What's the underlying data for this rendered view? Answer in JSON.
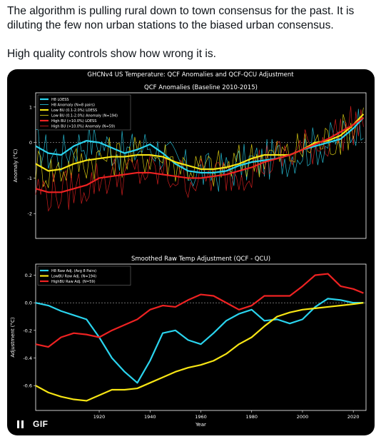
{
  "post": {
    "line1": "The algorithm is pulling rural down to town consensus for the past. It is diluting the few non urban stations to the biased urban consensus.",
    "line2": "High quality controls show how wrong it is."
  },
  "media": {
    "suptitle": "GHCNv4 US Temperature: QCF Anomalies and QCF-QCU Adjustment",
    "gif_label": "GIF",
    "pause_icon": "pause-icon"
  },
  "colors": {
    "cyan": "#2ad4ee",
    "yellow": "#f7e514",
    "red": "#ee2222",
    "white_series": "#ffffff"
  },
  "chart_data": [
    {
      "type": "line",
      "title": "QCF Anomalies (Baseline 2010-2015)",
      "xlabel": "",
      "ylabel": "Anomaly (°C)",
      "ylim": [
        -2.7,
        1.4
      ],
      "xlim": [
        1895,
        2025
      ],
      "yticks": [
        1,
        0,
        -1,
        -2
      ],
      "legend": "top-left",
      "series": [
        {
          "name": "H8 LOESS",
          "color": "#2ad4ee",
          "x": [
            1895,
            1900,
            1905,
            1910,
            1915,
            1920,
            1925,
            1930,
            1935,
            1940,
            1945,
            1950,
            1955,
            1960,
            1965,
            1970,
            1975,
            1980,
            1985,
            1990,
            1995,
            2000,
            2005,
            2010,
            2015,
            2020,
            2024
          ],
          "y": [
            -0.1,
            -0.3,
            -0.35,
            -0.1,
            0.05,
            0,
            -0.15,
            -0.3,
            -0.2,
            -0.05,
            -0.3,
            -0.6,
            -0.8,
            -0.85,
            -0.85,
            -0.8,
            -0.65,
            -0.55,
            -0.5,
            -0.45,
            -0.35,
            -0.2,
            -0.1,
            0,
            0.1,
            0.4,
            0.7
          ]
        },
        {
          "name": "Low BU (0.1-2.0%) LOESS",
          "color": "#f7e514",
          "x": [
            1895,
            1900,
            1905,
            1910,
            1915,
            1920,
            1925,
            1930,
            1935,
            1940,
            1945,
            1950,
            1955,
            1960,
            1965,
            1970,
            1975,
            1980,
            1985,
            1990,
            1995,
            2000,
            2005,
            2010,
            2015,
            2020,
            2024
          ],
          "y": [
            -0.6,
            -0.8,
            -0.75,
            -0.6,
            -0.5,
            -0.45,
            -0.4,
            -0.4,
            -0.35,
            -0.35,
            -0.4,
            -0.55,
            -0.65,
            -0.75,
            -0.75,
            -0.7,
            -0.6,
            -0.45,
            -0.35,
            -0.35,
            -0.35,
            -0.2,
            0,
            0.05,
            0.2,
            0.5,
            0.8
          ]
        },
        {
          "name": "High BU (>10.0%) LOESS",
          "color": "#ee2222",
          "x": [
            1895,
            1900,
            1905,
            1910,
            1915,
            1920,
            1925,
            1930,
            1935,
            1940,
            1945,
            1950,
            1955,
            1960,
            1965,
            1970,
            1975,
            1980,
            1985,
            1990,
            1995,
            2000,
            2005,
            2010,
            2015,
            2020,
            2024
          ],
          "y": [
            -1.3,
            -1.4,
            -1.4,
            -1.3,
            -1.2,
            -1.0,
            -0.95,
            -0.9,
            -0.85,
            -0.85,
            -0.9,
            -0.95,
            -1.0,
            -1.0,
            -0.95,
            -0.9,
            -0.8,
            -0.7,
            -0.55,
            -0.45,
            -0.35,
            -0.2,
            -0.05,
            0.1,
            0.3,
            0.5,
            0.7
          ]
        }
      ],
      "legend_entries": [
        {
          "label": "H8 LOESS",
          "color": "#2ad4ee",
          "style": "thick"
        },
        {
          "label": "H8 Anomaly (N=8 pairs)",
          "color": "#2ad4ee",
          "style": "thin"
        },
        {
          "label": "Low BU (0.1-2.0%) LOESS",
          "color": "#f7e514",
          "style": "thick"
        },
        {
          "label": "Low BU (0.1-2.0%) Anomaly (N=194)",
          "color": "#f7e514",
          "style": "thin"
        },
        {
          "label": "High BU (>10.0%) LOESS",
          "color": "#ee2222",
          "style": "thick"
        },
        {
          "label": "High BU (>10.0%) Anomaly (N=59)",
          "color": "#ee2222",
          "style": "thin"
        }
      ]
    },
    {
      "type": "line",
      "title": "Smoothed Raw Temp Adjustment (QCF - QCU)",
      "xlabel": "Year",
      "ylabel": "Adjustment (°C)",
      "ylim": [
        -0.78,
        0.28
      ],
      "xlim": [
        1895,
        2025
      ],
      "yticks": [
        0.2,
        0.0,
        -0.2,
        -0.4,
        -0.6
      ],
      "xticks": [
        1920,
        1940,
        1960,
        1980,
        2000,
        2020
      ],
      "legend": "top-left",
      "series": [
        {
          "name": "H8 Raw Adj. (Avg 8 Pairs)",
          "color": "#2ad4ee",
          "x": [
            1895,
            1900,
            1905,
            1910,
            1915,
            1920,
            1925,
            1930,
            1935,
            1940,
            1945,
            1950,
            1955,
            1960,
            1965,
            1970,
            1975,
            1980,
            1985,
            1990,
            1995,
            2000,
            2005,
            2010,
            2015,
            2020,
            2024
          ],
          "y": [
            0,
            -0.02,
            -0.06,
            -0.09,
            -0.12,
            -0.25,
            -0.4,
            -0.5,
            -0.58,
            -0.42,
            -0.22,
            -0.2,
            -0.27,
            -0.3,
            -0.22,
            -0.13,
            -0.08,
            -0.05,
            -0.13,
            -0.12,
            -0.15,
            -0.12,
            -0.03,
            0.03,
            0.02,
            0,
            0
          ]
        },
        {
          "name": "LowBU Raw Adj. (N=194)",
          "color": "#f7e514",
          "x": [
            1895,
            1900,
            1905,
            1910,
            1915,
            1920,
            1925,
            1930,
            1935,
            1940,
            1945,
            1950,
            1955,
            1960,
            1965,
            1970,
            1975,
            1980,
            1985,
            1990,
            1995,
            2000,
            2005,
            2010,
            2015,
            2020,
            2024
          ],
          "y": [
            -0.6,
            -0.65,
            -0.68,
            -0.7,
            -0.71,
            -0.67,
            -0.63,
            -0.63,
            -0.62,
            -0.58,
            -0.54,
            -0.5,
            -0.47,
            -0.45,
            -0.42,
            -0.37,
            -0.3,
            -0.25,
            -0.17,
            -0.1,
            -0.07,
            -0.05,
            -0.04,
            -0.03,
            -0.02,
            -0.01,
            0
          ]
        },
        {
          "name": "HighBU Raw Adj. (N=59)",
          "color": "#ee2222",
          "x": [
            1895,
            1900,
            1905,
            1910,
            1915,
            1920,
            1925,
            1930,
            1935,
            1940,
            1945,
            1950,
            1955,
            1960,
            1965,
            1970,
            1975,
            1980,
            1985,
            1990,
            1995,
            2000,
            2005,
            2010,
            2015,
            2020,
            2024
          ],
          "y": [
            -0.3,
            -0.32,
            -0.25,
            -0.22,
            -0.23,
            -0.25,
            -0.2,
            -0.16,
            -0.12,
            -0.05,
            -0.02,
            -0.03,
            0.02,
            0.06,
            0.05,
            0,
            -0.05,
            -0.02,
            0.05,
            0.05,
            0.05,
            0.12,
            0.2,
            0.21,
            0.12,
            0.1,
            0.07
          ]
        }
      ]
    }
  ]
}
